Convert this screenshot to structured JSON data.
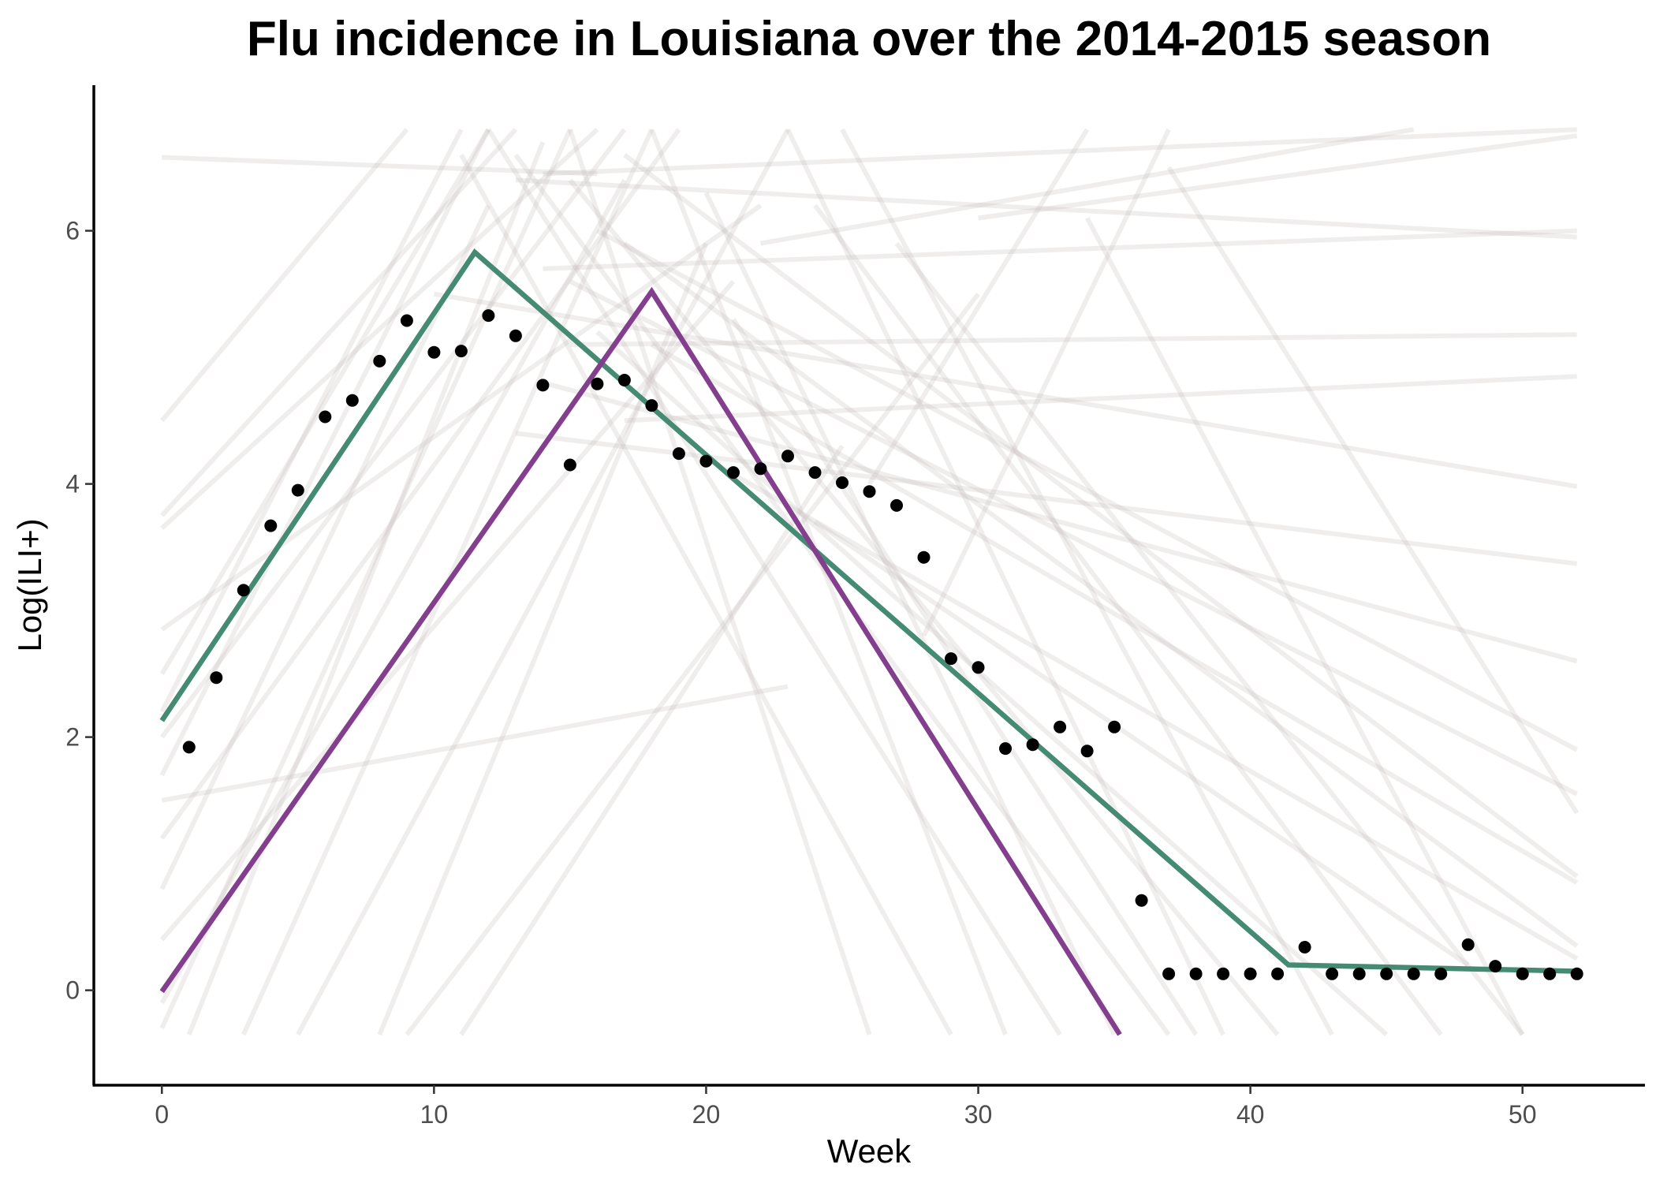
{
  "chart_data": {
    "type": "line",
    "title": "Flu incidence in Louisiana over the 2014-2015 season",
    "xlabel": "Week",
    "ylabel": "Log(ILI+)",
    "xlim": [
      -2.5,
      54.5
    ],
    "ylim": [
      -0.75,
      7.15
    ],
    "x_ticks": [
      0,
      10,
      20,
      30,
      40,
      50
    ],
    "y_ticks": [
      0,
      2,
      4,
      6
    ],
    "grid": false,
    "legend": "none",
    "observed_points": {
      "x": [
        1,
        2,
        3,
        4,
        5,
        6,
        7,
        8,
        9,
        10,
        11,
        12,
        13,
        14,
        15,
        16,
        17,
        18,
        19,
        20,
        21,
        22,
        23,
        24,
        25,
        26,
        27,
        28,
        29,
        30,
        31,
        32,
        33,
        34,
        35,
        36,
        37,
        38,
        39,
        40,
        41,
        42,
        43,
        44,
        45,
        46,
        47,
        48,
        49,
        50,
        51,
        52
      ],
      "y": [
        1.92,
        2.47,
        3.16,
        3.67,
        3.95,
        4.53,
        4.66,
        4.97,
        5.29,
        5.04,
        5.05,
        5.33,
        5.17,
        4.78,
        4.15,
        4.79,
        4.82,
        4.62,
        4.24,
        4.18,
        4.09,
        4.12,
        4.22,
        4.09,
        4.01,
        3.94,
        3.83,
        3.42,
        2.62,
        2.55,
        1.91,
        1.94,
        2.08,
        1.89,
        2.08,
        0.71,
        0.13,
        0.13,
        0.13,
        0.13,
        0.13,
        0.34,
        0.13,
        0.13,
        0.13,
        0.13,
        0.13,
        0.36,
        0.19,
        0.13,
        0.13,
        0.13
      ],
      "color": "#000000"
    },
    "series": [
      {
        "x": [
          0,
          11.5,
          41.4,
          52
        ],
        "y": [
          2.13,
          5.83,
          0.2,
          0.15
        ],
        "color": "#458a73"
      },
      {
        "x": [
          0,
          18,
          35.2
        ],
        "y": [
          -0.01,
          5.52,
          -0.35
        ],
        "color": "#833f8d"
      }
    ],
    "sample_trajectories": {
      "color": "#c9bfbf",
      "lines": [
        {
          "x": [
            0,
            16
          ],
          "y": [
            6.58,
            6.45
          ]
        },
        {
          "x": [
            0,
            9
          ],
          "y": [
            4.5,
            6.8
          ]
        },
        {
          "x": [
            0,
            13
          ],
          "y": [
            3.75,
            6.8
          ]
        },
        {
          "x": [
            0,
            16
          ],
          "y": [
            3.65,
            6.8
          ]
        },
        {
          "x": [
            0,
            22
          ],
          "y": [
            2.85,
            6.2
          ]
        },
        {
          "x": [
            0,
            12
          ],
          "y": [
            2.5,
            6.8
          ]
        },
        {
          "x": [
            0,
            11
          ],
          "y": [
            2.2,
            6.8
          ]
        },
        {
          "x": [
            0,
            17
          ],
          "y": [
            2.0,
            6.8
          ]
        },
        {
          "x": [
            0,
            12
          ],
          "y": [
            1.7,
            6.8
          ]
        },
        {
          "x": [
            0,
            19
          ],
          "y": [
            1.2,
            6.8
          ]
        },
        {
          "x": [
            0,
            12
          ],
          "y": [
            0.8,
            6.2
          ]
        },
        {
          "x": [
            0,
            21
          ],
          "y": [
            0.4,
            5.6
          ]
        },
        {
          "x": [
            0,
            17
          ],
          "y": [
            -0.1,
            6.4
          ]
        },
        {
          "x": [
            0,
            15
          ],
          "y": [
            -0.3,
            6.8
          ]
        },
        {
          "x": [
            1,
            14
          ],
          "y": [
            -0.35,
            6.7
          ]
        },
        {
          "x": [
            3,
            18
          ],
          "y": [
            -0.35,
            6.8
          ]
        },
        {
          "x": [
            5,
            23
          ],
          "y": [
            -0.35,
            6.8
          ]
        },
        {
          "x": [
            9,
            30
          ],
          "y": [
            -0.35,
            5.5
          ]
        },
        {
          "x": [
            8,
            20
          ],
          "y": [
            -0.35,
            5.9
          ]
        },
        {
          "x": [
            11,
            25
          ],
          "y": [
            -0.35,
            4.3
          ]
        },
        {
          "x": [
            0,
            23
          ],
          "y": [
            1.5,
            2.4
          ]
        },
        {
          "x": [
            14,
            52
          ],
          "y": [
            6.45,
            6.8
          ]
        },
        {
          "x": [
            13,
            52
          ],
          "y": [
            6.4,
            5.95
          ]
        },
        {
          "x": [
            14,
            52
          ],
          "y": [
            5.7,
            6.0
          ]
        },
        {
          "x": [
            15,
            52
          ],
          "y": [
            5.1,
            5.18
          ]
        },
        {
          "x": [
            17,
            52
          ],
          "y": [
            4.5,
            4.85
          ]
        },
        {
          "x": [
            10,
            52
          ],
          "y": [
            5.5,
            3.98
          ]
        },
        {
          "x": [
            13,
            52
          ],
          "y": [
            4.4,
            3.37
          ]
        },
        {
          "x": [
            14,
            52
          ],
          "y": [
            4.8,
            2.6
          ]
        },
        {
          "x": [
            16,
            52
          ],
          "y": [
            6.0,
            1.9
          ]
        },
        {
          "x": [
            15,
            52
          ],
          "y": [
            5.6,
            1.55
          ]
        },
        {
          "x": [
            18,
            52
          ],
          "y": [
            5.1,
            0.85
          ]
        },
        {
          "x": [
            17,
            52
          ],
          "y": [
            6.6,
            0.9
          ]
        },
        {
          "x": [
            20,
            52
          ],
          "y": [
            4.2,
            0.25
          ]
        },
        {
          "x": [
            16,
            45
          ],
          "y": [
            5.2,
            -0.35
          ]
        },
        {
          "x": [
            15,
            41
          ],
          "y": [
            6.4,
            -0.35
          ]
        },
        {
          "x": [
            13,
            37
          ],
          "y": [
            6.6,
            -0.35
          ]
        },
        {
          "x": [
            12,
            33
          ],
          "y": [
            6.8,
            -0.35
          ]
        },
        {
          "x": [
            11,
            29
          ],
          "y": [
            6.6,
            -0.35
          ]
        },
        {
          "x": [
            15,
            26
          ],
          "y": [
            6.8,
            -0.35
          ]
        },
        {
          "x": [
            20,
            35
          ],
          "y": [
            6.3,
            -0.35
          ]
        },
        {
          "x": [
            23,
            39
          ],
          "y": [
            6.8,
            -0.35
          ]
        },
        {
          "x": [
            18,
            31
          ],
          "y": [
            6.8,
            -0.35
          ]
        },
        {
          "x": [
            25,
            43
          ],
          "y": [
            6.8,
            -0.35
          ]
        },
        {
          "x": [
            24,
            47
          ],
          "y": [
            6.2,
            -0.35
          ]
        },
        {
          "x": [
            17,
            52
          ],
          "y": [
            5.9,
            0.35
          ]
        },
        {
          "x": [
            27,
            50
          ],
          "y": [
            5.9,
            -0.35
          ]
        },
        {
          "x": [
            21,
            38
          ],
          "y": [
            5.3,
            -0.35
          ]
        },
        {
          "x": [
            34,
            50
          ],
          "y": [
            6.1,
            -0.35
          ]
        },
        {
          "x": [
            37,
            52
          ],
          "y": [
            6.5,
            1.4
          ]
        },
        {
          "x": [
            22,
            46
          ],
          "y": [
            5.9,
            6.8
          ]
        },
        {
          "x": [
            30,
            52
          ],
          "y": [
            6.1,
            6.75
          ]
        },
        {
          "x": [
            26,
            34
          ],
          "y": [
            4.0,
            6.8
          ]
        },
        {
          "x": [
            28,
            37
          ],
          "y": [
            2.8,
            6.8
          ]
        },
        {
          "x": [
            24,
            48
          ],
          "y": [
            3.7,
            0.2
          ]
        }
      ]
    }
  }
}
